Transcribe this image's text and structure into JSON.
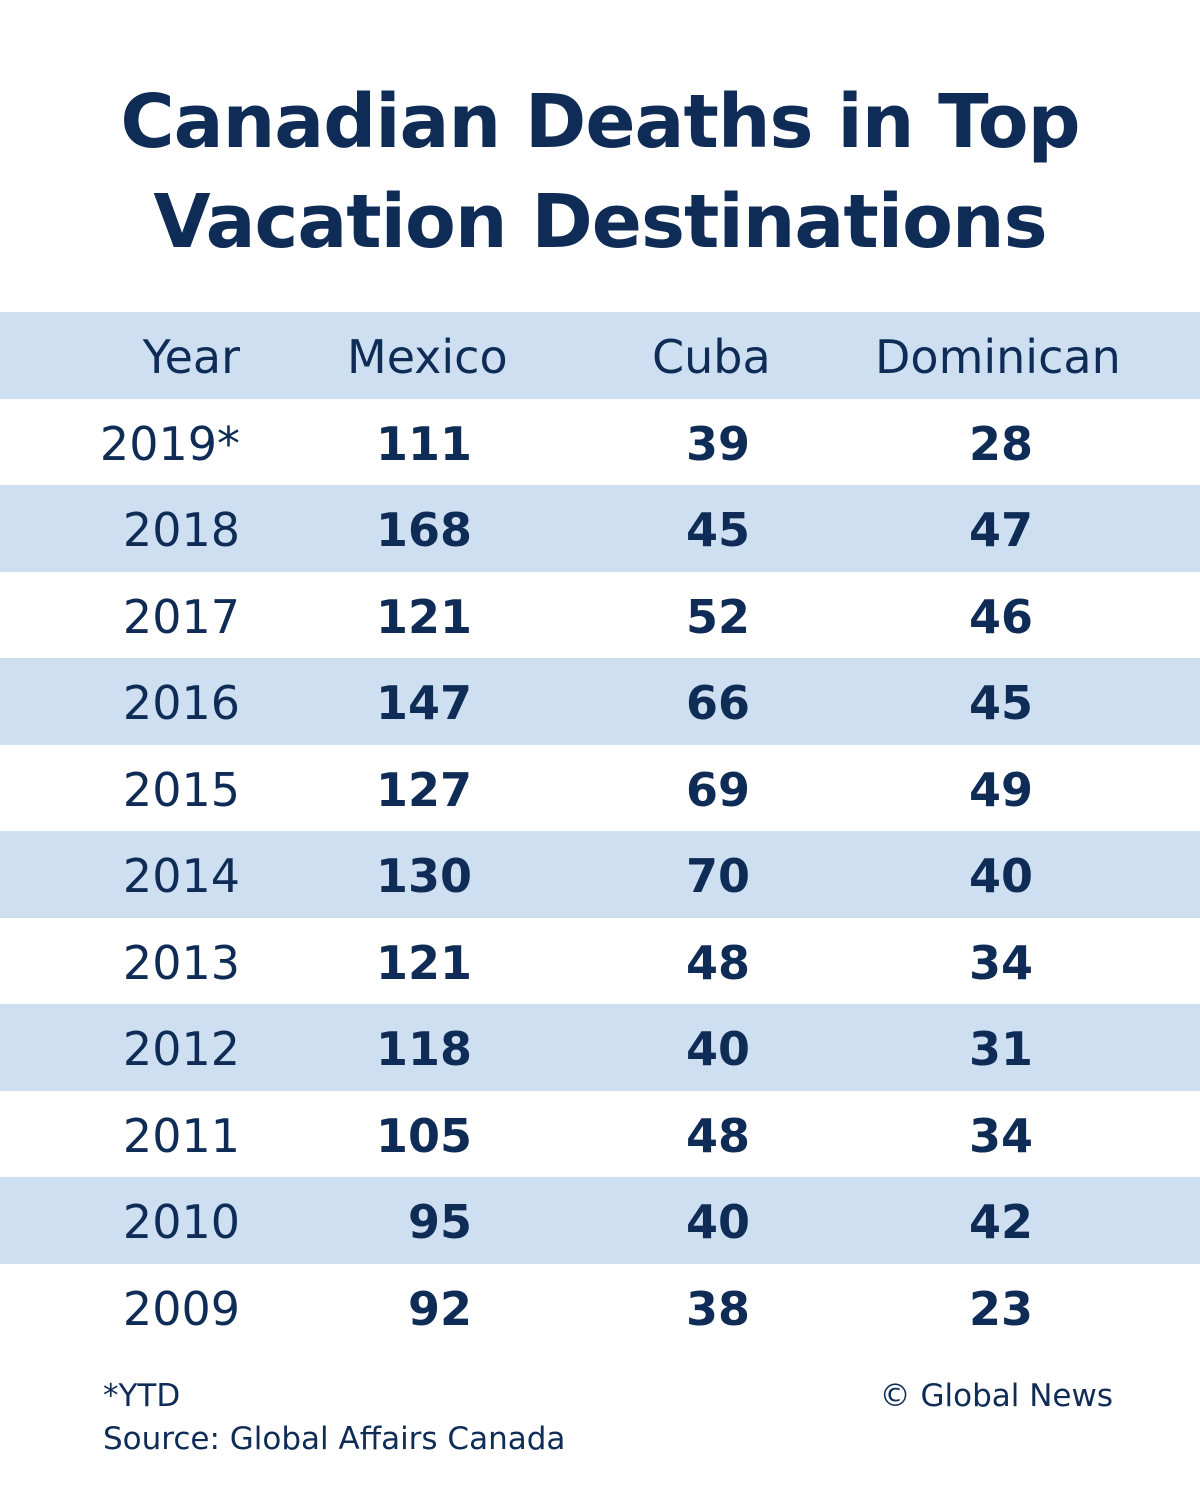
{
  "title": "Canadian Deaths in Top Vacation Destinations",
  "table": {
    "header": [
      "Year",
      "Mexico",
      "Cuba",
      "Dominican"
    ],
    "rows": [
      [
        "2019*",
        111,
        39,
        28
      ],
      [
        "2018",
        168,
        45,
        47
      ],
      [
        "2017",
        121,
        52,
        46
      ],
      [
        "2016",
        147,
        66,
        45
      ],
      [
        "2015",
        127,
        69,
        49
      ],
      [
        "2014",
        130,
        70,
        40
      ],
      [
        "2013",
        121,
        48,
        34
      ],
      [
        "2012",
        118,
        40,
        31
      ],
      [
        "2011",
        105,
        48,
        34
      ],
      [
        "2010",
        95,
        40,
        42
      ],
      [
        "2009",
        92,
        38,
        23
      ]
    ]
  },
  "footer": {
    "note": "*YTD",
    "source": "Source: Global Affairs Canada",
    "credit": "© Global News"
  }
}
